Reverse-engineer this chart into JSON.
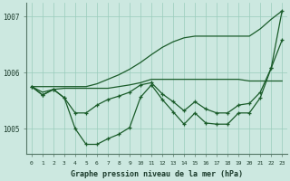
{
  "bg_color": "#cce8e0",
  "grid_color": "#99ccbb",
  "line_color": "#1a5c2a",
  "xlabel": "Graphe pression niveau de la mer (hPa)",
  "ylabel_ticks": [
    1005,
    1006,
    1007
  ],
  "x_ticks": [
    0,
    1,
    2,
    3,
    4,
    5,
    6,
    7,
    8,
    9,
    10,
    11,
    12,
    13,
    14,
    15,
    16,
    17,
    18,
    19,
    20,
    21,
    22,
    23
  ],
  "ylim": [
    1004.55,
    1007.25
  ],
  "xlim": [
    -0.5,
    23.5
  ],
  "series": {
    "line_straight": [
      1005.75,
      1005.75,
      1005.75,
      1005.75,
      1005.75,
      1005.75,
      1005.8,
      1005.88,
      1005.96,
      1006.06,
      1006.18,
      1006.32,
      1006.45,
      1006.55,
      1006.62,
      1006.65,
      1006.65,
      1006.65,
      1006.65,
      1006.65,
      1006.65,
      1006.78,
      1006.95,
      1007.1
    ],
    "line_flat": [
      1005.75,
      1005.65,
      1005.7,
      1005.72,
      1005.72,
      1005.72,
      1005.72,
      1005.72,
      1005.75,
      1005.78,
      1005.82,
      1005.88,
      1005.88,
      1005.88,
      1005.88,
      1005.88,
      1005.88,
      1005.88,
      1005.88,
      1005.88,
      1005.85,
      1005.85,
      1005.85,
      1005.85
    ],
    "jagged_main": [
      1005.75,
      1005.6,
      1005.7,
      1005.55,
      1005.0,
      1004.72,
      1004.72,
      1004.82,
      1004.9,
      1005.02,
      1005.56,
      1005.78,
      1005.52,
      1005.3,
      1005.08,
      1005.28,
      1005.1,
      1005.08,
      1005.08,
      1005.28,
      1005.28,
      1005.55,
      1006.08,
      1007.1
    ],
    "jagged_mid": [
      1005.75,
      1005.6,
      1005.7,
      1005.55,
      1005.28,
      1005.28,
      1005.42,
      1005.52,
      1005.58,
      1005.65,
      1005.78,
      1005.82,
      1005.62,
      1005.48,
      1005.32,
      1005.48,
      1005.35,
      1005.28,
      1005.28,
      1005.42,
      1005.45,
      1005.65,
      1006.08,
      1006.58
    ]
  }
}
